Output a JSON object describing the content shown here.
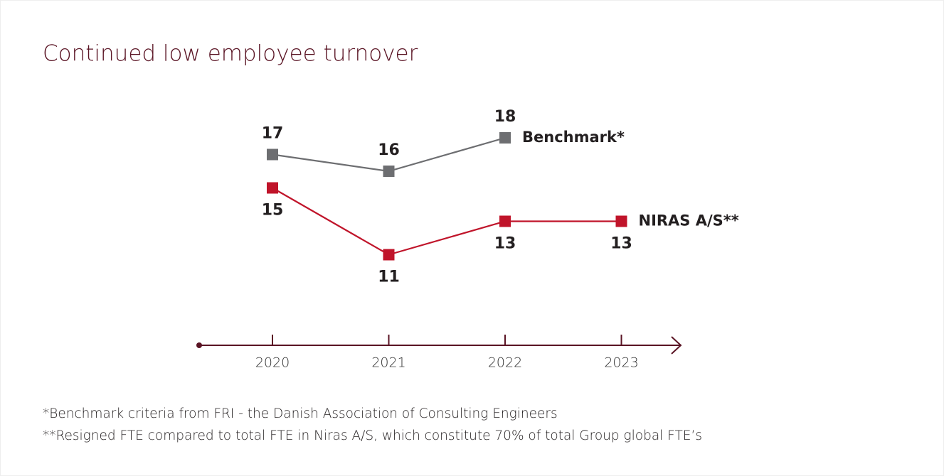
{
  "chart_data": {
    "type": "line",
    "title": "Continued low employee turnover",
    "categories": [
      "2020",
      "2021",
      "2022",
      "2023"
    ],
    "series": [
      {
        "name": "Benchmark*",
        "color": "#6d6e71",
        "values": [
          17,
          16,
          18,
          null
        ],
        "label_position": "above"
      },
      {
        "name": "NIRAS A/S**",
        "color": "#c0142a",
        "values": [
          15,
          11,
          13,
          13
        ],
        "label_position": "below"
      }
    ],
    "ylim": [
      10,
      19
    ],
    "axis_color": "#5a1424",
    "footnotes": [
      "*Benchmark criteria from FRI - the Danish Association of Consulting Engineers",
      "**Resigned FTE compared to total FTE in Niras A/S, which constitute 70% of total Group global FTE’s"
    ]
  }
}
